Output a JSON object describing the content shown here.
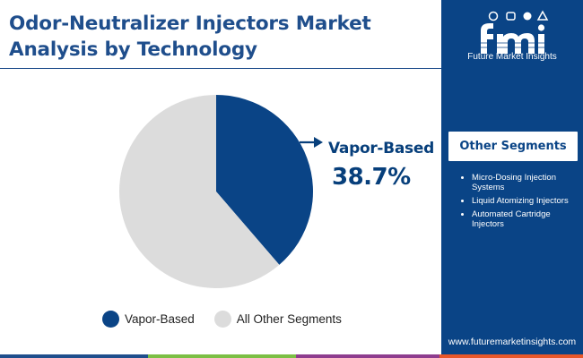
{
  "title": "Odor-Neutralizer Injectors Market Analysis by Technology",
  "brand": {
    "logo_text": "fmi",
    "name": "Future Market Insights",
    "website": "www.futuremarketinsights.com"
  },
  "callout": {
    "label": "Vapor-Based",
    "value": "38.7%"
  },
  "other_segments": {
    "title": "Other Segments",
    "items": [
      "Micro-Dosing Injection Systems",
      "Liquid Atomizing Injectors",
      "Automated Cartridge Injectors"
    ]
  },
  "chart_data": {
    "type": "pie",
    "title": "",
    "slices": [
      {
        "label": "Vapor-Based",
        "value": 38.7,
        "color": "#0a4486"
      },
      {
        "label": "All Other Segments",
        "value": 61.3,
        "color": "#dcdcdc"
      }
    ],
    "legend_position": "bottom"
  },
  "colors": {
    "brand_blue": "#0a4486",
    "title_blue": "#1f4e8c",
    "other_gray": "#dcdcdc",
    "bottom_bar": [
      "#1f4e8c",
      "#7bbf44",
      "#8e3c8e",
      "#e8572a"
    ]
  }
}
